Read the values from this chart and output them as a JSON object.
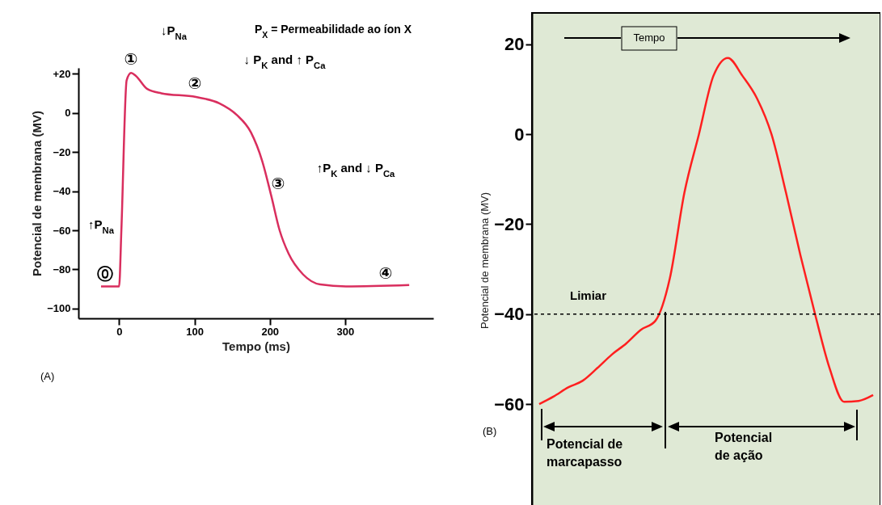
{
  "chart_data": [
    {
      "type": "line",
      "xlabel": "Tempo (ms)",
      "ylabel": "Potencial de membrana (MV)",
      "x": [
        -24,
        0,
        3,
        10,
        16,
        22,
        37,
        56,
        102,
        133,
        156,
        175,
        190,
        202,
        213,
        225,
        244,
        267,
        301,
        385
      ],
      "series": [
        {
          "color": "#d92e5e",
          "values": [
            -88.7,
            -88.7,
            -60,
            16.7,
            20.4,
            19,
            12.3,
            10,
            8.1,
            4.9,
            -1,
            -10,
            -24.7,
            -42.5,
            -60,
            -72,
            -82.5,
            -87.7,
            -88.7,
            -88
          ]
        }
      ],
      "xlim": [
        -54,
        417
      ],
      "ylim": [
        -105,
        23
      ],
      "xticks": [
        0,
        100,
        200,
        300
      ],
      "yticks": [
        {
          "value": 20,
          "label": "+20"
        },
        0,
        -20,
        -40,
        -60,
        -80,
        -100
      ],
      "annotations": [
        "①",
        "↓P$_{Na}$",
        "②",
        "↓ P$_{K}$ and ↑ P$_{Ca}$",
        "③",
        "↑P$_{K}$ and ↓ P$_{Ca}$",
        "⓪",
        "↑P$_{Na}$",
        "④",
        "P$_{X}$ =  Permeabilidade ao íon X",
        "(A)"
      ]
    },
    {
      "type": "line",
      "ylabel": "Potencial de membrana (MV)",
      "tick_labels": "y",
      "categories": [
        null,
        null,
        null,
        null,
        null,
        null,
        null,
        null,
        null,
        null,
        null,
        null,
        null,
        null,
        null,
        null,
        null,
        null,
        null,
        null,
        null,
        null,
        null,
        null
      ],
      "series": [
        {
          "color": "#ff1f1f",
          "values": [
            -60,
            -58.3,
            -56.3,
            -54.8,
            -52,
            -49,
            -46.5,
            -43.5,
            -41.5,
            -32,
            -13,
            0,
            13,
            17,
            13,
            8,
            0,
            -13,
            -27,
            -40,
            -52,
            -59.5,
            -59.3,
            -58
          ]
        }
      ],
      "ylim": [
        -83,
        27
      ],
      "yticks": [
        -60,
        -40,
        -20,
        0,
        20
      ],
      "ref_lines": [
        {
          "axis": "y",
          "value": -40,
          "label": "Limiar",
          "color": "#000000",
          "line_style": "dashed"
        }
      ],
      "annotations": [
        "Tempo",
        "Potencial de\nmarcapasso",
        "Potencial\nde ação",
        "(B)"
      ]
    }
  ]
}
